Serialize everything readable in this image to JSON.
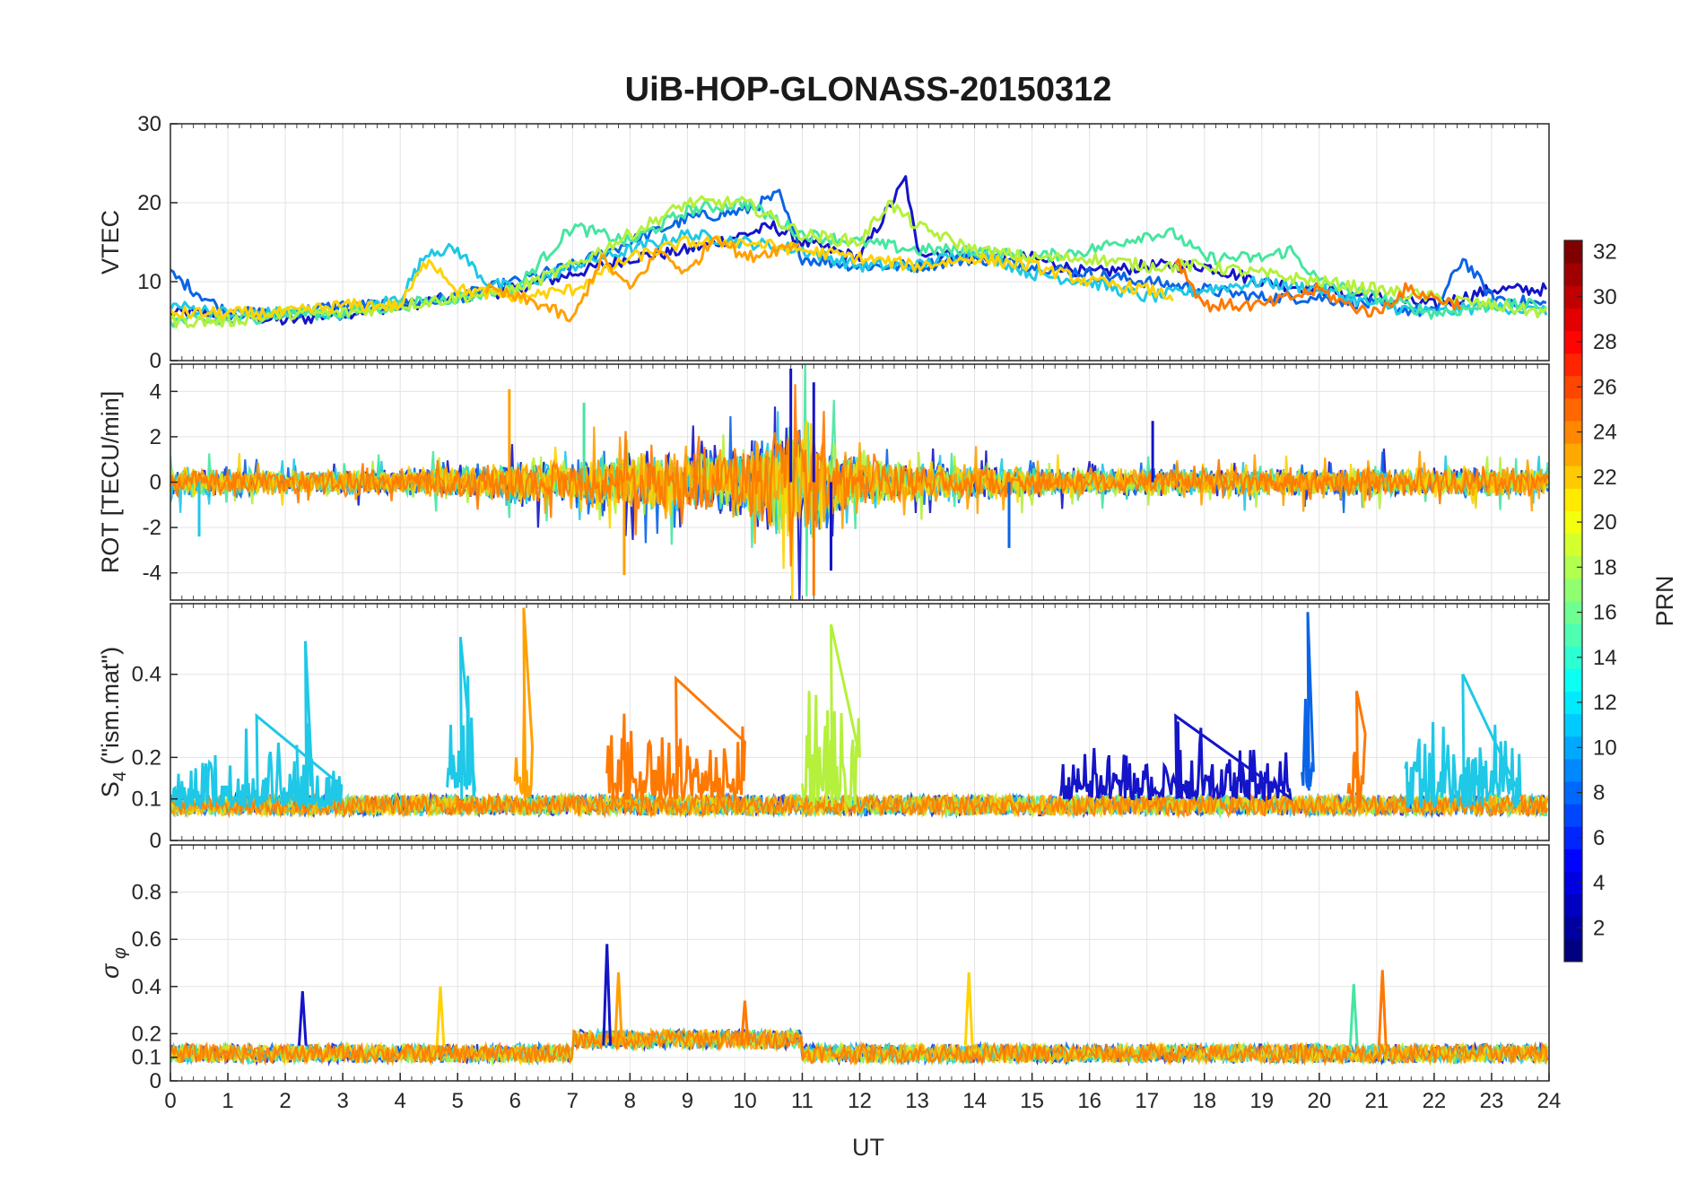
{
  "title": "UiB-HOP-GLONASS-20150312",
  "chart_data": [
    {
      "type": "line",
      "panel": "vtec",
      "ylabel": "VTEC",
      "ylim": [
        0,
        30
      ],
      "yticks": [
        0,
        10,
        20,
        30
      ],
      "xlim": [
        0,
        24
      ],
      "grid": true,
      "series": [
        {
          "color": "#1414c8",
          "x": [
            0,
            1,
            2,
            3,
            4,
            5,
            6,
            7,
            8,
            9,
            10,
            10.5,
            11,
            12,
            12.8,
            13,
            14,
            15,
            16,
            17,
            18,
            19,
            20,
            21,
            22,
            23,
            24
          ],
          "y": [
            6,
            6,
            5,
            6,
            7,
            8,
            9,
            11,
            13,
            14,
            16,
            17,
            15,
            13,
            23,
            14,
            13,
            13,
            11,
            12,
            12,
            10,
            9,
            8,
            7,
            9,
            9
          ]
        },
        {
          "color": "#0a64e6",
          "x": [
            0,
            1,
            2,
            3,
            4,
            5,
            6,
            7,
            8,
            9,
            10,
            10.6,
            11,
            12,
            13,
            14,
            15,
            16,
            17,
            18,
            19,
            20,
            21,
            22,
            22.5,
            23,
            24
          ],
          "y": [
            11,
            6,
            6,
            7,
            7,
            8,
            10,
            12,
            15,
            18,
            19,
            21,
            13,
            12,
            12,
            13,
            12,
            11,
            10,
            9,
            8,
            8,
            7,
            6,
            13,
            8,
            7
          ]
        },
        {
          "color": "#1ec8e6",
          "x": [
            0,
            1,
            2,
            3,
            4,
            4.5,
            5,
            5.5,
            6,
            7,
            8,
            9,
            10,
            11,
            12,
            13,
            14,
            15,
            16,
            17,
            18,
            19,
            20,
            21,
            22,
            23,
            24
          ],
          "y": [
            7,
            6,
            6,
            6,
            8,
            14,
            14,
            10,
            9,
            12,
            14,
            16,
            15,
            14,
            12,
            12,
            14,
            11,
            10,
            8,
            9,
            10,
            9,
            7,
            6,
            7,
            6
          ]
        },
        {
          "color": "#46e6a0",
          "x": [
            0,
            1,
            2,
            3,
            4,
            5,
            6,
            7,
            8,
            9,
            10,
            11,
            12,
            13,
            14,
            15,
            16,
            17,
            17.5,
            18,
            19,
            19.5,
            20,
            21,
            22,
            23,
            24
          ],
          "y": [
            5,
            5,
            6,
            6,
            7,
            8,
            9,
            17,
            15,
            19,
            20,
            16,
            15,
            14,
            14,
            13,
            14,
            16,
            16,
            13,
            13,
            14,
            10,
            8,
            6,
            7,
            7
          ]
        },
        {
          "color": "#b4f03c",
          "x": [
            0,
            1,
            2,
            3,
            4,
            5,
            6,
            7,
            8,
            9,
            10,
            11,
            12,
            12.5,
            13,
            14,
            15,
            16,
            17,
            18,
            19,
            20,
            21,
            22,
            23,
            24
          ],
          "y": [
            5,
            5,
            6,
            6,
            7,
            8,
            9,
            12,
            16,
            20,
            20,
            16,
            15,
            20,
            17,
            14,
            13,
            13,
            12,
            12,
            11,
            10,
            9,
            8,
            7,
            6
          ]
        },
        {
          "color": "#ffd200",
          "x": [
            0,
            1,
            2,
            3,
            4,
            4.5,
            5,
            6,
            7,
            8,
            9,
            10,
            11,
            12,
            13,
            14,
            15,
            16,
            17,
            17.5
          ],
          "y": [
            6,
            6,
            6,
            7,
            7,
            13,
            9,
            8,
            9,
            13,
            15,
            15,
            14,
            13,
            12,
            13,
            12,
            10,
            9,
            8
          ]
        },
        {
          "color": "#ffa000",
          "x": [
            5.5,
            6,
            6.5,
            7,
            7.5,
            8,
            8.5,
            9,
            9.5,
            10,
            10.5,
            11
          ],
          "y": [
            9,
            8,
            7,
            5,
            13,
            9,
            14,
            11,
            16,
            13,
            14,
            15
          ]
        },
        {
          "color": "#ff7800",
          "x": [
            17.5,
            18,
            19,
            20,
            20.5,
            21,
            21.5,
            22,
            22.5
          ],
          "y": [
            13,
            7,
            7,
            9,
            7,
            6,
            9,
            8,
            7
          ]
        }
      ]
    },
    {
      "type": "line",
      "panel": "rot",
      "ylabel": "ROT [TECU/min]",
      "ylim": [
        -5.2,
        5.2
      ],
      "yticks": [
        -4,
        -2,
        0,
        2,
        4
      ],
      "xlim": [
        0,
        24
      ],
      "grid": true,
      "noise_envelope": {
        "x": [
          0,
          2,
          4,
          6,
          7,
          8,
          9,
          10,
          10.5,
          11,
          11.5,
          12,
          14,
          16,
          18,
          20,
          22,
          24
        ],
        "amp": [
          0.9,
          0.7,
          0.8,
          1.2,
          1.4,
          1.6,
          1.8,
          2.2,
          3.2,
          3.8,
          2.4,
          1.4,
          1.0,
          0.8,
          0.8,
          0.8,
          0.9,
          0.9
        ]
      },
      "spikes": [
        {
          "x": 10.8,
          "y": 5.0,
          "color": "#1414c8"
        },
        {
          "x": 11.2,
          "y": -5.0,
          "color": "#ff7800"
        },
        {
          "x": 11.5,
          "y": -3.9,
          "color": "#1414c8"
        },
        {
          "x": 11.2,
          "y": 4.4,
          "color": "#1414c8"
        },
        {
          "x": 5.9,
          "y": 4.1,
          "color": "#ffa000"
        },
        {
          "x": 7.9,
          "y": -4.1,
          "color": "#ffa000"
        },
        {
          "x": 7.2,
          "y": 3.5,
          "color": "#46e6a0"
        },
        {
          "x": 0.5,
          "y": -2.4,
          "color": "#1ec8e6"
        },
        {
          "x": 17.1,
          "y": 2.7,
          "color": "#1414c8"
        },
        {
          "x": 14.6,
          "y": -2.9,
          "color": "#0a64e6"
        }
      ]
    },
    {
      "type": "line",
      "panel": "s4",
      "ylabel": "S_4 (\"ism.mat\")",
      "ylim": [
        0,
        0.57
      ],
      "yticks": [
        0,
        0.1,
        0.2,
        0.4
      ],
      "xlim": [
        0,
        24
      ],
      "grid": true,
      "bursts": [
        {
          "x0": 0.0,
          "x1": 3.0,
          "base": 0.08,
          "peak": 0.3,
          "color": "#1ec8e6"
        },
        {
          "x0": 2.2,
          "x1": 2.5,
          "base": 0.08,
          "peak": 0.48,
          "color": "#1ec8e6"
        },
        {
          "x0": 4.8,
          "x1": 5.3,
          "base": 0.1,
          "peak": 0.49,
          "color": "#1ec8e6"
        },
        {
          "x0": 6.0,
          "x1": 6.3,
          "base": 0.1,
          "peak": 0.56,
          "color": "#ffa000"
        },
        {
          "x0": 7.6,
          "x1": 10.0,
          "base": 0.1,
          "peak": 0.39,
          "color": "#ff7800"
        },
        {
          "x0": 11.0,
          "x1": 12.0,
          "base": 0.08,
          "peak": 0.52,
          "color": "#b4f03c"
        },
        {
          "x0": 15.5,
          "x1": 19.5,
          "base": 0.1,
          "peak": 0.3,
          "color": "#1414c8"
        },
        {
          "x0": 19.7,
          "x1": 19.9,
          "base": 0.12,
          "peak": 0.55,
          "color": "#0a64e6"
        },
        {
          "x0": 20.5,
          "x1": 20.8,
          "base": 0.08,
          "peak": 0.36,
          "color": "#ff7800"
        },
        {
          "x0": 21.5,
          "x1": 23.5,
          "base": 0.08,
          "peak": 0.4,
          "color": "#1ec8e6"
        }
      ]
    },
    {
      "type": "line",
      "panel": "sigma_phi",
      "ylabel": "σ_φ",
      "ylim": [
        0,
        1
      ],
      "yticks": [
        0,
        0.1,
        0.2,
        0.4,
        0.6,
        0.8
      ],
      "xlabel": "UT",
      "xlim": [
        0,
        24
      ],
      "xticks": [
        0,
        1,
        2,
        3,
        4,
        5,
        6,
        7,
        8,
        9,
        10,
        11,
        12,
        13,
        14,
        15,
        16,
        17,
        18,
        19,
        20,
        21,
        22,
        23,
        24
      ],
      "grid": true,
      "peaks": [
        {
          "x": 7.6,
          "y": 0.58,
          "color": "#1414c8"
        },
        {
          "x": 7.8,
          "y": 0.46,
          "color": "#ffa000"
        },
        {
          "x": 2.3,
          "y": 0.38,
          "color": "#1414c8"
        },
        {
          "x": 4.7,
          "y": 0.4,
          "color": "#ffd200"
        },
        {
          "x": 13.9,
          "y": 0.46,
          "color": "#ffd200"
        },
        {
          "x": 21.1,
          "y": 0.47,
          "color": "#ff7800"
        },
        {
          "x": 20.6,
          "y": 0.41,
          "color": "#46e6a0"
        },
        {
          "x": 10.0,
          "y": 0.34,
          "color": "#ff7800"
        }
      ]
    }
  ],
  "colorbar": {
    "label": "PRN",
    "range": [
      1,
      32
    ],
    "ticks": [
      2,
      4,
      6,
      8,
      10,
      12,
      14,
      16,
      18,
      20,
      22,
      24,
      26,
      28,
      30,
      32
    ],
    "colormap": "jet"
  }
}
